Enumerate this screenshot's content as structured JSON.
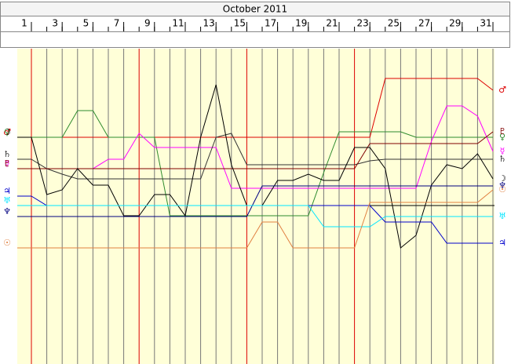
{
  "chart_data": {
    "type": "line",
    "title": "October 2011",
    "x": [
      1,
      2,
      3,
      4,
      5,
      6,
      7,
      8,
      9,
      10,
      11,
      12,
      13,
      14,
      15,
      16,
      17,
      18,
      19,
      20,
      21,
      22,
      23,
      24,
      25,
      26,
      27,
      28,
      29,
      30,
      31
    ],
    "xlim": [
      1,
      31
    ],
    "xticks": [
      1,
      3,
      5,
      7,
      9,
      11,
      13,
      15,
      17,
      19,
      21,
      23,
      25,
      27,
      29,
      31
    ],
    "ylim": [
      0,
      400
    ],
    "week_lines": [
      1,
      8,
      15,
      22
    ],
    "week_line_color": "#dd0000",
    "grid": true,
    "series": [
      {
        "name": "♂",
        "color": "#dd0000",
        "values": [
          289,
          289,
          289,
          289,
          289,
          289,
          289,
          289,
          289,
          289,
          289,
          289,
          289,
          289,
          289,
          289,
          289,
          289,
          289,
          289,
          289,
          289,
          289,
          364,
          364,
          364,
          364,
          364,
          364,
          364,
          349
        ]
      },
      {
        "name": "♀",
        "color": "#2e8b2e",
        "values": [
          289,
          289,
          289,
          323,
          323,
          289,
          289,
          289,
          289,
          189,
          189,
          189,
          189,
          189,
          189,
          189,
          189,
          189,
          189,
          244,
          296,
          296,
          296,
          296,
          296,
          289,
          289,
          289,
          289,
          289,
          289
        ]
      },
      {
        "name": "☿",
        "color": "#ff00ff",
        "values": [
          249,
          249,
          249,
          249,
          249,
          261,
          261,
          294,
          276,
          276,
          276,
          276,
          276,
          224,
          224,
          224,
          224,
          224,
          224,
          224,
          224,
          224,
          224,
          224,
          224,
          224,
          284,
          329,
          329,
          316,
          271
        ]
      },
      {
        "name": "♄",
        "color": "#333333",
        "values": [
          261,
          249,
          242,
          236,
          236,
          236,
          236,
          236,
          236,
          236,
          236,
          236,
          289,
          294,
          254,
          254,
          254,
          254,
          254,
          254,
          254,
          254,
          259,
          261,
          261,
          261,
          261,
          261,
          261,
          261,
          261
        ]
      },
      {
        "name": "♇",
        "color": "#800000",
        "values": [
          249,
          249,
          249,
          249,
          249,
          249,
          249,
          249,
          249,
          249,
          249,
          249,
          249,
          249,
          249,
          249,
          249,
          249,
          249,
          249,
          249,
          249,
          281,
          281,
          281,
          281,
          281,
          281,
          281,
          281,
          296
        ]
      },
      {
        "name": "☽",
        "color": "#000000",
        "values": [
          289,
          216,
          222,
          249,
          228,
          228,
          189,
          189,
          216,
          216,
          189,
          289,
          356,
          254,
          202,
          202,
          234,
          234,
          242,
          234,
          234,
          276,
          276,
          249,
          148,
          164,
          228,
          254,
          249,
          268,
          236
        ]
      },
      {
        "name": "♃",
        "color": "#0000cc",
        "values": [
          214,
          202,
          202,
          202,
          202,
          202,
          202,
          202,
          202,
          202,
          202,
          202,
          202,
          202,
          202,
          202,
          202,
          202,
          202,
          202,
          202,
          202,
          202,
          181,
          181,
          181,
          181,
          154,
          154,
          154,
          154
        ]
      },
      {
        "name": "♆",
        "color": "#000080",
        "values": [
          188,
          188,
          188,
          188,
          188,
          188,
          188,
          188,
          188,
          188,
          188,
          188,
          188,
          188,
          188,
          227,
          227,
          227,
          227,
          227,
          227,
          227,
          227,
          227,
          227,
          227,
          227,
          227,
          227,
          227,
          227
        ]
      },
      {
        "name": "♅",
        "color": "#00e5ff",
        "values": [
          202,
          202,
          202,
          202,
          202,
          202,
          202,
          202,
          202,
          202,
          202,
          202,
          202,
          202,
          202,
          202,
          202,
          202,
          202,
          175,
          175,
          175,
          175,
          188,
          188,
          188,
          188,
          188,
          188,
          188,
          188
        ]
      },
      {
        "name": "☉",
        "color": "#e08040",
        "values": [
          148,
          148,
          148,
          148,
          148,
          148,
          148,
          148,
          148,
          148,
          148,
          148,
          148,
          148,
          148,
          181,
          181,
          148,
          148,
          148,
          148,
          148,
          206,
          206,
          206,
          206,
          206,
          206,
          206,
          206,
          222
        ]
      }
    ]
  }
}
